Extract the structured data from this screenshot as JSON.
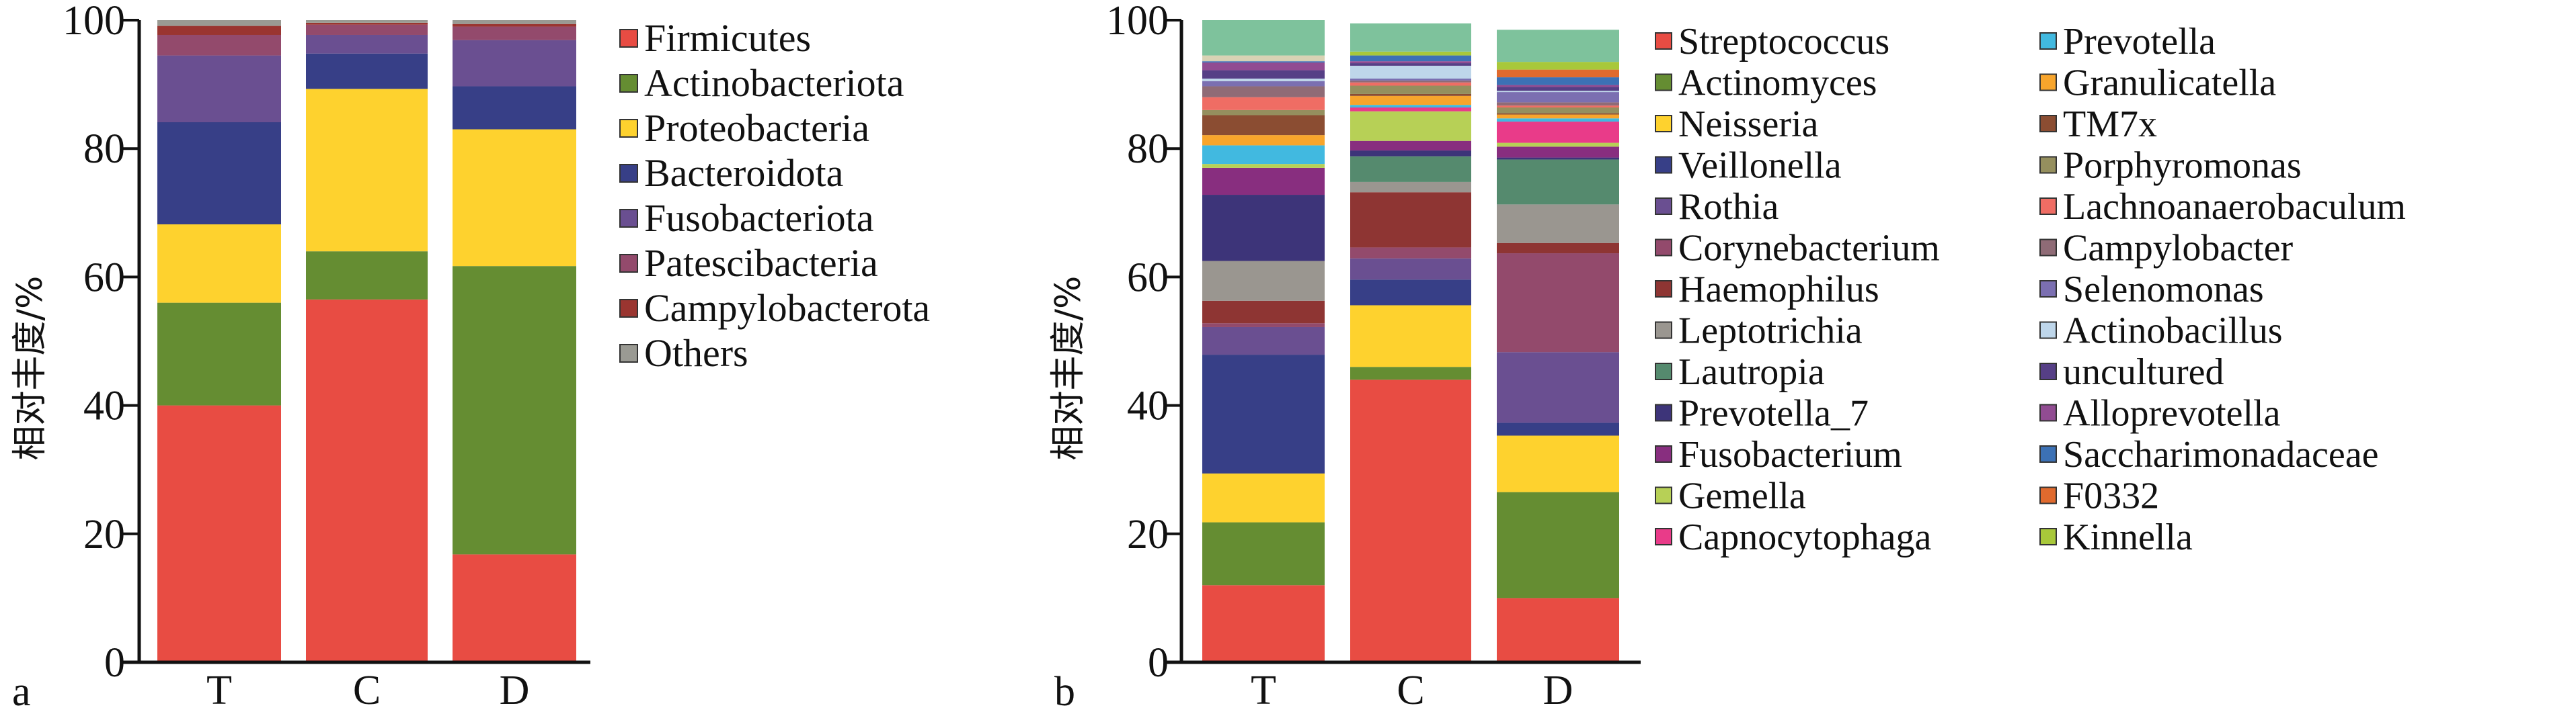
{
  "chart_data": [
    {
      "panel": "a",
      "type": "bar",
      "stacked": true,
      "title": "",
      "xlabel": "",
      "ylabel": "相对丰度/%",
      "ylim": [
        0,
        100
      ],
      "yticks": [
        0,
        20,
        40,
        60,
        80,
        100
      ],
      "categories": [
        "T",
        "C",
        "D"
      ],
      "legend_position": "right",
      "series": [
        {
          "name": "Firmicutes",
          "color": "#e84c43",
          "values": [
            40.0,
            56.5,
            16.8
          ]
        },
        {
          "name": "Actinobacteriota",
          "color": "#658d32",
          "values": [
            16.0,
            7.5,
            44.9
          ]
        },
        {
          "name": "Proteobacteria",
          "color": "#fed22e",
          "values": [
            12.2,
            25.3,
            21.3
          ]
        },
        {
          "name": "Bacteroidota",
          "color": "#373f87",
          "values": [
            15.9,
            5.5,
            6.7
          ]
        },
        {
          "name": "Fusobacteriota",
          "color": "#6a4f91",
          "values": [
            10.4,
            2.9,
            7.2
          ]
        },
        {
          "name": "Patescibacteria",
          "color": "#934a6c",
          "values": [
            3.2,
            1.6,
            2.1
          ]
        },
        {
          "name": "Campylobacterota",
          "color": "#9a3530",
          "values": [
            1.4,
            0.3,
            0.4
          ]
        },
        {
          "name": "Others",
          "color": "#9a9a93",
          "values": [
            0.9,
            0.4,
            0.6
          ]
        }
      ]
    },
    {
      "panel": "b",
      "type": "bar",
      "stacked": true,
      "title": "",
      "xlabel": "",
      "ylabel": "相对丰度/%",
      "ylim": [
        0,
        100
      ],
      "yticks": [
        0,
        20,
        40,
        60,
        80,
        100
      ],
      "categories": [
        "T",
        "C",
        "D"
      ],
      "legend_position": "right",
      "series": [
        {
          "name": "Streptococcus",
          "color": "#e84c43",
          "values": [
            12.0,
            44.0,
            10.0
          ]
        },
        {
          "name": "Actinomyces",
          "color": "#658d32",
          "values": [
            9.8,
            2.0,
            16.5
          ]
        },
        {
          "name": "Neisseria",
          "color": "#fed22e",
          "values": [
            7.6,
            9.6,
            8.8
          ]
        },
        {
          "name": "Veillonella",
          "color": "#373f87",
          "values": [
            18.5,
            4.0,
            2.0
          ]
        },
        {
          "name": "Rothia",
          "color": "#6a4f91",
          "values": [
            4.3,
            3.3,
            11.0
          ]
        },
        {
          "name": "Corynebacterium",
          "color": "#934a6c",
          "values": [
            0.6,
            1.7,
            15.4
          ]
        },
        {
          "name": "Haemophilus",
          "color": "#8e3533",
          "values": [
            3.5,
            8.6,
            1.6
          ]
        },
        {
          "name": "Leptotrichia",
          "color": "#9a9690",
          "values": [
            6.2,
            1.6,
            6.0
          ]
        },
        {
          "name": "Lautropia",
          "color": "#558a6e",
          "values": [
            0.0,
            4.0,
            7.0
          ]
        },
        {
          "name": "Prevotella_7",
          "color": "#3d3479",
          "values": [
            10.3,
            0.9,
            0.3
          ]
        },
        {
          "name": "Fusobacterium",
          "color": "#882e7f",
          "values": [
            4.2,
            1.5,
            1.7
          ]
        },
        {
          "name": "Gemella",
          "color": "#b7d056",
          "values": [
            0.6,
            4.6,
            0.6
          ]
        },
        {
          "name": "Capnocytophaga",
          "color": "#e93b89",
          "values": [
            0.0,
            0.6,
            3.3
          ]
        },
        {
          "name": "Prevotella",
          "color": "#41b9e0",
          "values": [
            2.9,
            0.4,
            0.5
          ]
        },
        {
          "name": "Granulicatella",
          "color": "#f8a52c",
          "values": [
            1.6,
            1.4,
            0.6
          ]
        },
        {
          "name": "TM7x",
          "color": "#8b4d32",
          "values": [
            3.1,
            0.3,
            0.2
          ]
        },
        {
          "name": "Porphyromonas",
          "color": "#958f5e",
          "values": [
            0.8,
            1.3,
            0.9
          ]
        },
        {
          "name": "Lachnoanaerobaculum",
          "color": "#ef6d64",
          "values": [
            2.0,
            0.5,
            0.3
          ]
        },
        {
          "name": "Campylobacter",
          "color": "#8f6b76",
          "values": [
            1.7,
            0.3,
            0.5
          ]
        },
        {
          "name": "Selenomonas",
          "color": "#7b6fb1",
          "values": [
            0.8,
            0.3,
            1.6
          ]
        },
        {
          "name": "Actinobacillus",
          "color": "#bed6ea",
          "values": [
            0.4,
            2.0,
            0.2
          ]
        },
        {
          "name": "uncultured",
          "color": "#563f86",
          "values": [
            1.3,
            0.4,
            0.6
          ]
        },
        {
          "name": "Alloprevotella",
          "color": "#914c92",
          "values": [
            1.2,
            0.3,
            0.3
          ]
        },
        {
          "name": "Saccharimonadaceae",
          "color": "#3c71b5",
          "values": [
            0.2,
            0.9,
            1.2
          ]
        },
        {
          "name": "F0332",
          "color": "#e06a2e",
          "values": [
            0.0,
            0.0,
            1.2
          ]
        },
        {
          "name": "Kinnella",
          "color": "#a8c83a",
          "values": [
            0.0,
            0.6,
            1.2
          ]
        },
        {
          "name": "",
          "color": "#d8d2b4",
          "values": [
            0.9,
            0.0,
            0.0
          ],
          "in_legend": false
        },
        {
          "name": "",
          "color": "#7ec29c",
          "values": [
            5.5,
            4.4,
            5.0
          ],
          "in_legend": false
        }
      ]
    }
  ],
  "panels": {
    "a": {
      "label": "a",
      "ytitle": "相对丰度/%"
    },
    "b": {
      "label": "b",
      "ytitle": "相对丰度/%"
    }
  }
}
